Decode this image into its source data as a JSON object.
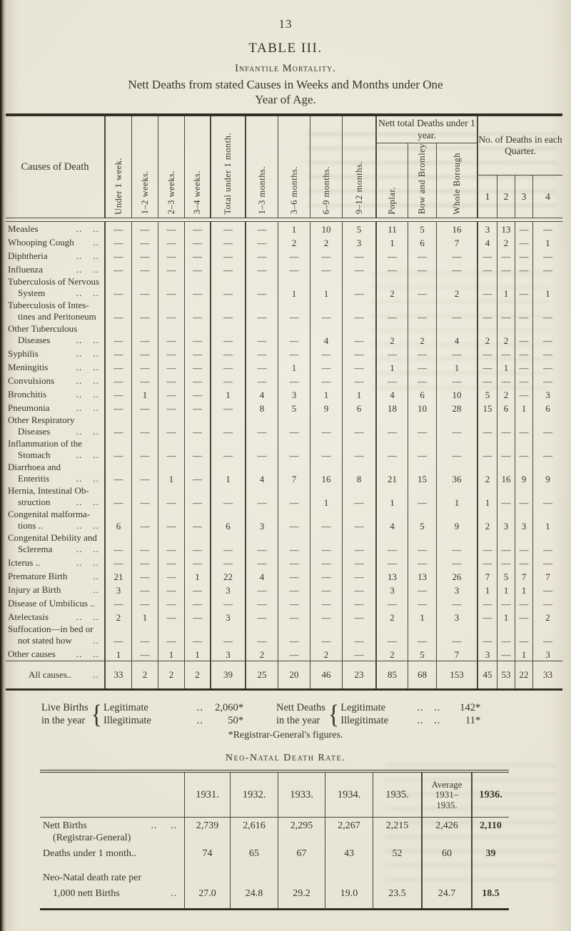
{
  "page": {
    "number": "13"
  },
  "colors": {
    "paper": "#e9e5d5",
    "ink": "#373428",
    "rule": "#4a463a"
  },
  "main_table": {
    "title": "TABLE III.",
    "subtitle": "Infantile Mortality.",
    "caption_line1": "Nett Deaths from stated Causes in Weeks and Months under One",
    "caption_line2": "Year of Age.",
    "headers": {
      "causes": "Causes of Death",
      "age_cols": [
        "Under 1 week.",
        "1–2 weeks.",
        "2–3 weeks.",
        "3–4 weeks.",
        "Total under 1 month.",
        "1–3 months.",
        "3–6 months.",
        "6–9 months.",
        "9–12 months."
      ],
      "totals_group": "Nett total Deaths under 1 year.",
      "totals_cols": [
        "Poplar.",
        "Bow and Bromley",
        "Whole Borough"
      ],
      "quarters_group": "No. of Deaths in each Quarter.",
      "quarters_cols": [
        "1",
        "2",
        "3",
        "4"
      ]
    },
    "rows": [
      {
        "label": [
          [
            "Measles",
            ".. .."
          ]
        ],
        "values": [
          "—",
          "—",
          "—",
          "—",
          "—",
          "—",
          "1",
          "10",
          "5",
          "11",
          "5",
          "16",
          "3",
          "13",
          "—",
          "—"
        ]
      },
      {
        "label": [
          [
            "Whooping Cough",
            ".."
          ]
        ],
        "values": [
          "—",
          "—",
          "—",
          "—",
          "—",
          "—",
          "2",
          "2",
          "3",
          "1",
          "6",
          "7",
          "4",
          "2",
          "—",
          "1"
        ]
      },
      {
        "label": [
          [
            "Diphtheria",
            ".. .."
          ]
        ],
        "values": [
          "—",
          "—",
          "—",
          "—",
          "—",
          "—",
          "—",
          "—",
          "—",
          "—",
          "—",
          "—",
          "—",
          "—",
          "—",
          "—"
        ]
      },
      {
        "label": [
          [
            "Influenza",
            ".. .."
          ]
        ],
        "values": [
          "—",
          "—",
          "—",
          "—",
          "—",
          "—",
          "—",
          "—",
          "—",
          "—",
          "—",
          "—",
          "—",
          "—",
          "—",
          "—"
        ]
      },
      {
        "label": [
          [
            "Tuberculosis of Nervous",
            ""
          ],
          [
            "System",
            ".. .."
          ]
        ],
        "values": [
          "—",
          "—",
          "—",
          "—",
          "—",
          "—",
          "1",
          "1",
          "—",
          "2",
          "—",
          "2",
          "—",
          "1",
          "—",
          "1"
        ]
      },
      {
        "label": [
          [
            "Tuberculosis of Intes-",
            ""
          ],
          [
            "tines and Peritoneum",
            ""
          ]
        ],
        "values": [
          "—",
          "—",
          "—",
          "—",
          "—",
          "—",
          "—",
          "—",
          "—",
          "—",
          "—",
          "—",
          "—",
          "—",
          "—",
          "—"
        ]
      },
      {
        "label": [
          [
            "Other Tuberculous",
            ""
          ],
          [
            "Diseases",
            ".. .."
          ]
        ],
        "values": [
          "—",
          "—",
          "—",
          "—",
          "—",
          "—",
          "—",
          "4",
          "—",
          "2",
          "2",
          "4",
          "2",
          "2",
          "—",
          "—"
        ]
      },
      {
        "label": [
          [
            "Syphilis",
            ".. .."
          ]
        ],
        "values": [
          "—",
          "—",
          "—",
          "—",
          "—",
          "—",
          "—",
          "—",
          "—",
          "—",
          "—",
          "—",
          "—",
          "—",
          "—",
          "—"
        ]
      },
      {
        "label": [
          [
            "Meningitis",
            ".. .."
          ]
        ],
        "values": [
          "—",
          "—",
          "—",
          "—",
          "—",
          "—",
          "1",
          "—",
          "—",
          "1",
          "—",
          "1",
          "—",
          "1",
          "—",
          "—"
        ]
      },
      {
        "label": [
          [
            "Convulsions",
            ".. .."
          ]
        ],
        "values": [
          "—",
          "—",
          "—",
          "—",
          "—",
          "—",
          "—",
          "—",
          "—",
          "—",
          "—",
          "—",
          "—",
          "—",
          "—",
          "—"
        ]
      },
      {
        "label": [
          [
            "Bronchitis",
            ".. .."
          ]
        ],
        "values": [
          "—",
          "1",
          "—",
          "—",
          "1",
          "4",
          "3",
          "1",
          "1",
          "4",
          "6",
          "10",
          "5",
          "2",
          "—",
          "3"
        ]
      },
      {
        "label": [
          [
            "Pneumonia",
            ".. .."
          ]
        ],
        "values": [
          "—",
          "—",
          "—",
          "—",
          "—",
          "8",
          "5",
          "9",
          "6",
          "18",
          "10",
          "28",
          "15",
          "6",
          "1",
          "6"
        ]
      },
      {
        "label": [
          [
            "Other Respiratory",
            ""
          ],
          [
            "Diseases",
            ".. .."
          ]
        ],
        "values": [
          "—",
          "—",
          "—",
          "—",
          "—",
          "—",
          "—",
          "—",
          "—",
          "—",
          "—",
          "—",
          "—",
          "—",
          "—",
          "—"
        ]
      },
      {
        "label": [
          [
            "Inflammation of the",
            ""
          ],
          [
            "Stomach",
            ".. .."
          ]
        ],
        "values": [
          "—",
          "—",
          "—",
          "—",
          "—",
          "—",
          "—",
          "—",
          "—",
          "—",
          "—",
          "—",
          "—",
          "—",
          "—",
          "—"
        ]
      },
      {
        "label": [
          [
            "Diarrhoea and",
            ""
          ],
          [
            "Enteritis",
            ".. .."
          ]
        ],
        "values": [
          "—",
          "—",
          "1",
          "—",
          "1",
          "4",
          "7",
          "16",
          "8",
          "21",
          "15",
          "36",
          "2",
          "16",
          "9",
          "9"
        ]
      },
      {
        "label": [
          [
            "Hernia, Intestinal Ob-",
            ""
          ],
          [
            "struction",
            ".. .."
          ]
        ],
        "values": [
          "—",
          "—",
          "—",
          "—",
          "—",
          "—",
          "—",
          "1",
          "—",
          "1",
          "—",
          "1",
          "1",
          "—",
          "—",
          "—"
        ]
      },
      {
        "label": [
          [
            "Congenital malforma-",
            ""
          ],
          [
            "tions ..",
            ".. .."
          ]
        ],
        "values": [
          "6",
          "—",
          "—",
          "—",
          "6",
          "3",
          "—",
          "—",
          "—",
          "4",
          "5",
          "9",
          "2",
          "3",
          "3",
          "1"
        ]
      },
      {
        "label": [
          [
            "Congenital Debility and",
            ""
          ],
          [
            "Sclerema",
            ".. .."
          ]
        ],
        "values": [
          "—",
          "—",
          "—",
          "—",
          "—",
          "—",
          "—",
          "—",
          "—",
          "—",
          "—",
          "—",
          "—",
          "—",
          "—",
          "—"
        ]
      },
      {
        "label": [
          [
            "Icterus ..",
            ".. .."
          ]
        ],
        "values": [
          "—",
          "—",
          "—",
          "—",
          "—",
          "—",
          "—",
          "—",
          "—",
          "—",
          "—",
          "—",
          "—",
          "—",
          "—",
          "—"
        ]
      },
      {
        "label": [
          [
            "Premature Birth",
            ".."
          ]
        ],
        "values": [
          "21",
          "—",
          "—",
          "1",
          "22",
          "4",
          "—",
          "—",
          "—",
          "13",
          "13",
          "26",
          "7",
          "5",
          "7",
          "7"
        ]
      },
      {
        "label": [
          [
            "Injury at Birth",
            ".."
          ]
        ],
        "values": [
          "3",
          "—",
          "—",
          "—",
          "3",
          "—",
          "—",
          "—",
          "—",
          "3",
          "—",
          "3",
          "1",
          "1",
          "1",
          "—"
        ]
      },
      {
        "label": [
          [
            "Disease of Umbilicus ..",
            ""
          ]
        ],
        "values": [
          "—",
          "—",
          "—",
          "—",
          "—",
          "—",
          "—",
          "—",
          "—",
          "—",
          "—",
          "—",
          "—",
          "—",
          "—",
          "—"
        ]
      },
      {
        "label": [
          [
            "Atelectasis",
            ".. .."
          ]
        ],
        "values": [
          "2",
          "1",
          "—",
          "—",
          "3",
          "—",
          "—",
          "—",
          "—",
          "2",
          "1",
          "3",
          "—",
          "1",
          "—",
          "2"
        ]
      },
      {
        "label": [
          [
            "Suffocation—in bed or",
            ""
          ],
          [
            "not stated how",
            ".."
          ]
        ],
        "values": [
          "—",
          "—",
          "—",
          "—",
          "—",
          "—",
          "—",
          "—",
          "—",
          "—",
          "—",
          "—",
          "—",
          "—",
          "—",
          "—"
        ]
      },
      {
        "label": [
          [
            "Other causes",
            ".. .."
          ]
        ],
        "values": [
          "1",
          "—",
          "1",
          "1",
          "3",
          "2",
          "—",
          "2",
          "—",
          "2",
          "5",
          "7",
          "3",
          "—",
          "1",
          "3"
        ]
      }
    ],
    "total_row": {
      "label": [
        [
          "All causes..",
          ".."
        ]
      ],
      "values": [
        "33",
        "2",
        "2",
        "2",
        "39",
        "25",
        "20",
        "46",
        "23",
        "85",
        "68",
        "153",
        "45",
        "53",
        "22",
        "33"
      ]
    }
  },
  "vitals": {
    "live_births": {
      "label_line1": "Live Births",
      "label_line2": "in the year",
      "rows": [
        {
          "name": "Legitimate",
          "dots": "..",
          "value": "2,060*"
        },
        {
          "name": "Illegitimate",
          "dots": "..",
          "value": "50*"
        }
      ]
    },
    "nett_deaths": {
      "label_line1": "Nett Deaths",
      "label_line2": "in the year",
      "rows": [
        {
          "name": "Legitimate",
          "dots": ".. ..",
          "value": "142*"
        },
        {
          "name": "Illegitimate",
          "dots": ".. ..",
          "value": "11*"
        }
      ]
    },
    "footnote": "*Registrar-General's figures."
  },
  "neonatal": {
    "title": "Neo-Natal Death Rate.",
    "year_headers": [
      "1931.",
      "1932.",
      "1933.",
      "1934.",
      "1935."
    ],
    "avg_header_lines": [
      "Average",
      "1931–",
      "1935."
    ],
    "last_header": "1936.",
    "rows": [
      {
        "label": "Nett Births",
        "dots": ".. ..",
        "indent": false,
        "values": [
          "2,739",
          "2,616",
          "2,295",
          "2,267",
          "2,215",
          "2,426",
          "2,110"
        ]
      },
      {
        "label": "(Registrar-General)",
        "dots": "",
        "indent": true,
        "values": null
      },
      {
        "label": "Deaths under 1 month..",
        "dots": "",
        "indent": false,
        "values": [
          "74",
          "65",
          "67",
          "43",
          "52",
          "60",
          "39"
        ]
      },
      {
        "spacer": true
      },
      {
        "label": "Neo-Natal death rate per",
        "dots": "",
        "indent": false,
        "values": null
      },
      {
        "label": "1,000 nett Births",
        "dots": "..",
        "indent": true,
        "values": [
          "27.0",
          "24.8",
          "29.2",
          "19.0",
          "23.5",
          "24.7",
          "18.5"
        ]
      },
      {
        "spacer": true
      }
    ]
  }
}
